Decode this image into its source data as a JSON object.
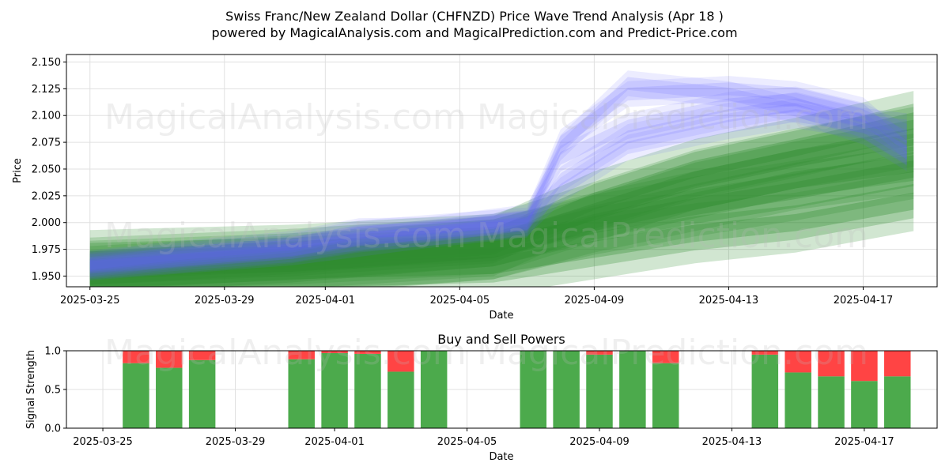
{
  "title_line1": "Swiss Franc/New Zealand Dollar (CHFNZD) Price Wave Trend Analysis (Apr 18 )",
  "title_line2": "powered by MagicalAnalysis.com and MagicalPrediction.com and Predict-Price.com",
  "watermarks": [
    "MagicalAnalysis.com",
    "MagicalPrediction.com",
    "MagicalAnalysis.com",
    "MagicalPrediction.com",
    "MagicalAnalysis.com",
    "MagicalPrediction.com"
  ],
  "colors": {
    "blue_wave": "#6464ff",
    "green_wave": "#2e8b2e",
    "buy": "#4caa4c",
    "sell": "#ff4444",
    "grid": "#e0e0e0"
  },
  "chart_data": [
    {
      "type": "area",
      "title": "",
      "xlabel": "Date",
      "ylabel": "Price",
      "ylim": [
        1.94,
        2.157
      ],
      "xlim_days": [
        -0.7,
        25.2
      ],
      "x_start_date": "2025-03-25",
      "xticks": [
        {
          "day": 0,
          "label": "2025-03-25"
        },
        {
          "day": 4,
          "label": "2025-03-29"
        },
        {
          "day": 7,
          "label": "2025-04-01"
        },
        {
          "day": 11,
          "label": "2025-04-05"
        },
        {
          "day": 15,
          "label": "2025-04-09"
        },
        {
          "day": 19,
          "label": "2025-04-13"
        },
        {
          "day": 23,
          "label": "2025-04-17"
        }
      ],
      "yticks": [
        1.95,
        1.975,
        2.0,
        2.025,
        2.05,
        2.075,
        2.1,
        2.125,
        2.15
      ],
      "blue_series": [
        {
          "name": "wave-blue-1",
          "x": [
            0,
            3,
            6,
            8,
            10,
            13,
            14,
            16,
            19,
            21,
            23,
            24.3
          ],
          "values": [
            1.96,
            1.968,
            1.975,
            1.985,
            1.99,
            2.0,
            2.07,
            2.13,
            2.12,
            2.105,
            2.085,
            2.06
          ]
        },
        {
          "name": "wave-blue-2",
          "x": [
            0,
            3,
            6,
            8,
            10,
            13,
            14,
            16,
            19,
            21,
            23,
            24.3
          ],
          "values": [
            1.962,
            1.972,
            1.98,
            1.992,
            1.993,
            2.005,
            2.06,
            2.09,
            2.11,
            2.115,
            2.1,
            2.08
          ]
        },
        {
          "name": "wave-blue-3",
          "x": [
            0,
            3,
            6,
            8,
            10,
            13,
            14,
            16,
            19,
            21,
            23,
            24.3
          ],
          "values": [
            1.958,
            1.965,
            1.972,
            1.98,
            1.988,
            1.998,
            2.04,
            2.08,
            2.1,
            2.11,
            2.095,
            2.09
          ]
        },
        {
          "name": "wave-blue-4",
          "x": [
            0,
            3,
            6,
            8,
            10,
            13,
            14,
            16,
            19,
            21,
            23,
            24.3
          ],
          "values": [
            1.961,
            1.97,
            1.978,
            1.99,
            1.995,
            2.002,
            2.075,
            2.12,
            2.125,
            2.12,
            2.105,
            2.07
          ]
        },
        {
          "name": "wave-blue-5",
          "x": [
            0,
            3,
            6,
            8,
            10,
            13,
            14,
            16,
            19,
            21,
            23,
            24.3
          ],
          "values": [
            1.959,
            1.966,
            1.974,
            1.984,
            1.99,
            1.999,
            2.03,
            2.07,
            2.09,
            2.1,
            2.09,
            2.065
          ]
        }
      ],
      "green_series": [
        {
          "name": "wave-green-1",
          "x": [
            0,
            6,
            12,
            15,
            18,
            21,
            24.5
          ],
          "values": [
            1.965,
            1.97,
            1.98,
            2.01,
            2.04,
            2.06,
            2.08
          ]
        },
        {
          "name": "wave-green-2",
          "x": [
            0,
            6,
            12,
            15,
            18,
            21,
            24.5
          ],
          "values": [
            1.955,
            1.962,
            1.975,
            1.998,
            2.015,
            2.03,
            2.05
          ]
        },
        {
          "name": "wave-green-3",
          "x": [
            0,
            6,
            12,
            15,
            18,
            21,
            24.5
          ],
          "values": [
            1.95,
            1.96,
            1.975,
            2.0,
            2.02,
            2.04,
            2.055
          ]
        },
        {
          "name": "wave-green-4",
          "x": [
            0,
            6,
            12,
            15,
            18,
            21,
            24.5
          ],
          "values": [
            1.945,
            1.955,
            1.96,
            1.975,
            1.99,
            2.0,
            2.02
          ]
        },
        {
          "name": "wave-green-5",
          "x": [
            0,
            6,
            12,
            15,
            18,
            21,
            24.5
          ],
          "values": [
            1.958,
            1.966,
            1.978,
            2.02,
            2.05,
            2.07,
            2.095
          ]
        }
      ]
    },
    {
      "type": "bar",
      "title": "Buy and Sell Powers",
      "xlabel": "Date",
      "ylabel": "Signal Strength",
      "ylim": [
        0,
        1.0
      ],
      "xlim_days": [
        -1.1,
        25.2
      ],
      "yticks": [
        0.0,
        0.5,
        1.0
      ],
      "xticks": [
        {
          "day": 0,
          "label": "2025-03-25"
        },
        {
          "day": 4,
          "label": "2025-03-29"
        },
        {
          "day": 7,
          "label": "2025-04-01"
        },
        {
          "day": 11,
          "label": "2025-04-05"
        },
        {
          "day": 15,
          "label": "2025-04-09"
        },
        {
          "day": 19,
          "label": "2025-04-13"
        },
        {
          "day": 23,
          "label": "2025-04-17"
        }
      ],
      "days": [
        1,
        2,
        3,
        6,
        7,
        8,
        9,
        10,
        13,
        14,
        15,
        16,
        17,
        20,
        21,
        22,
        23,
        24
      ],
      "buy": [
        0.84,
        0.78,
        0.88,
        0.89,
        0.97,
        0.96,
        0.73,
        1.0,
        1.0,
        1.0,
        0.95,
        1.0,
        0.84,
        0.95,
        0.72,
        0.67,
        0.61,
        0.67
      ],
      "sell": [
        0.16,
        0.22,
        0.12,
        0.11,
        0.03,
        0.04,
        0.27,
        0.0,
        0.0,
        0.0,
        0.05,
        0.0,
        0.16,
        0.05,
        0.28,
        0.33,
        0.39,
        0.33
      ]
    }
  ]
}
